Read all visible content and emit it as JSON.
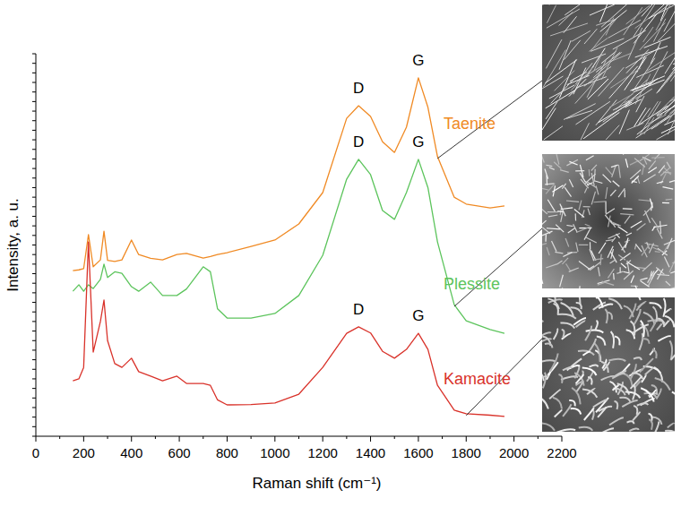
{
  "chart_data": {
    "type": "line",
    "x_label": "Raman shift (cm⁻¹)",
    "y_label": "Intensity, a. u.",
    "x": [
      155,
      180,
      200,
      220,
      240,
      270,
      285,
      300,
      330,
      360,
      400,
      430,
      480,
      530,
      590,
      630,
      700,
      730,
      760,
      800,
      900,
      1000,
      1100,
      1200,
      1300,
      1350,
      1400,
      1450,
      1500,
      1550,
      1600,
      1640,
      1680,
      1750,
      1800,
      1900,
      1960
    ],
    "series": [
      {
        "name": "Taenite",
        "color": "#f08a24",
        "values": [
          43.3,
          43.5,
          43.8,
          52.7,
          44.3,
          46.1,
          53.6,
          46,
          45.7,
          46.1,
          51.3,
          47.5,
          46.5,
          46.1,
          47.5,
          47.8,
          46.6,
          47,
          47.5,
          48,
          49.6,
          51.3,
          55.5,
          63.7,
          83.1,
          86.4,
          83.6,
          77,
          74.2,
          80.8,
          93.7,
          86,
          73.1,
          62.5,
          60.7,
          59.7,
          60.2
        ]
      },
      {
        "name": "Plessite",
        "color": "#5cc45c",
        "values": [
          37.9,
          39.6,
          37.9,
          39.6,
          38.6,
          41,
          45,
          41.5,
          43,
          42.6,
          39.1,
          37.9,
          40.3,
          36.8,
          36.8,
          38.5,
          44.3,
          43,
          33.3,
          30.9,
          30.9,
          32.1,
          36.8,
          47.3,
          67.2,
          72.4,
          68.4,
          59,
          56.7,
          63.7,
          72.4,
          65,
          50.8,
          34.4,
          30.2,
          27.9,
          26.9
        ]
      },
      {
        "name": "Kamacite",
        "color": "#d9322a",
        "values": [
          14.5,
          15,
          18,
          50.8,
          22,
          30,
          35.6,
          25,
          19,
          18,
          20.4,
          16.9,
          15.7,
          14.5,
          15.7,
          13.8,
          13.8,
          13.3,
          9.5,
          8.2,
          8.3,
          8.7,
          11,
          18,
          26.9,
          28.6,
          27,
          22.2,
          20.4,
          22.7,
          26.9,
          22.7,
          13.3,
          6.8,
          5.9,
          5.5,
          5.2
        ]
      }
    ],
    "annotations": [
      {
        "text": "D",
        "x": 1350,
        "y": 86.4
      },
      {
        "text": "G",
        "x": 1600,
        "y": 93.7
      },
      {
        "text": "D",
        "x": 1350,
        "y": 72.4
      },
      {
        "text": "G",
        "x": 1600,
        "y": 72.4
      },
      {
        "text": "D",
        "x": 1350,
        "y": 28.6
      },
      {
        "text": "G",
        "x": 1600,
        "y": 26.9
      }
    ],
    "xlim": [
      0,
      2200
    ],
    "xticks": [
      0,
      200,
      400,
      600,
      800,
      1000,
      1200,
      1400,
      1600,
      1800,
      2000,
      2200
    ],
    "ylim": [
      0,
      100
    ],
    "yticks": [
      0,
      2.5,
      5,
      7.5,
      10,
      12.5,
      15,
      17.5,
      20,
      22.5,
      25,
      27.5,
      30,
      32.5,
      35,
      37.5,
      40,
      42.5,
      45,
      47.5,
      50,
      52.5,
      55,
      57.5,
      60,
      62.5,
      65,
      67.5,
      70,
      72.5,
      75,
      77.5,
      80,
      82.5,
      85,
      87.5,
      90,
      92.5,
      95,
      97.5,
      100
    ],
    "tick_labels": "x",
    "grid": false
  }
}
